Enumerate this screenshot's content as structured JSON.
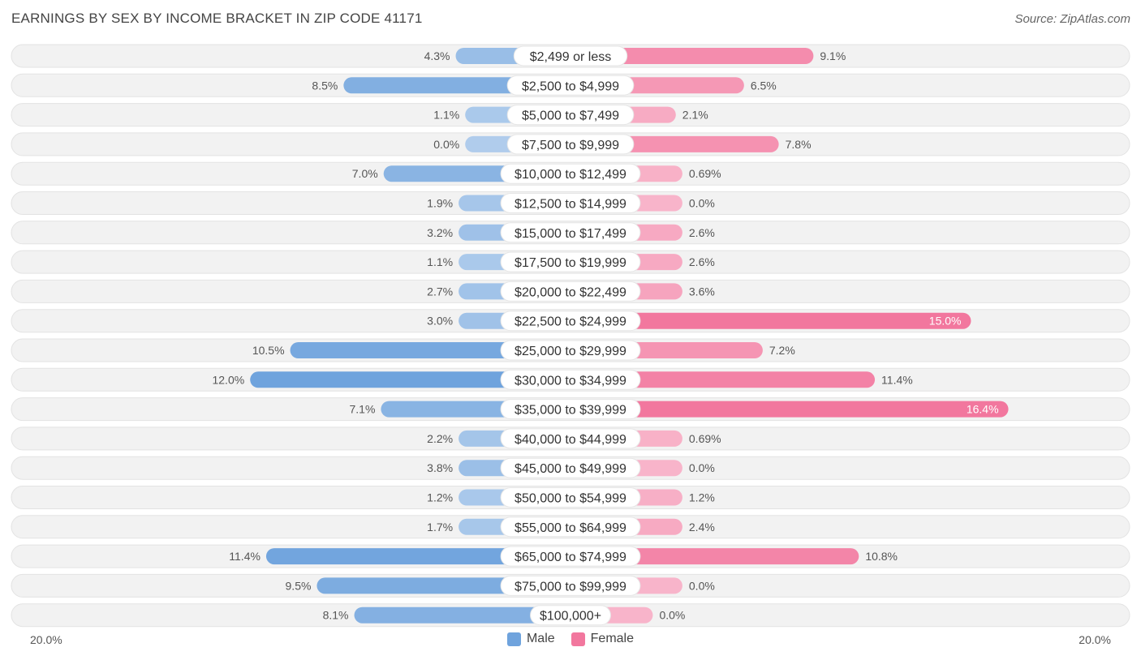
{
  "title": "EARNINGS BY SEX BY INCOME BRACKET IN ZIP CODE 41171",
  "source": "Source: ZipAtlas.com",
  "colors": {
    "male": "#6fa3dd",
    "female": "#f2779e",
    "track": "#f1f1f1"
  },
  "chart_data": {
    "type": "bar",
    "orientation": "horizontal-diverging",
    "title": "EARNINGS BY SEX BY INCOME BRACKET IN ZIP CODE 41171",
    "axis_min_label": "20.0%",
    "axis_max_label": "20.0%",
    "xlim": [
      -20,
      20
    ],
    "categories": [
      "$2,499 or less",
      "$2,500 to $4,999",
      "$5,000 to $7,499",
      "$7,500 to $9,999",
      "$10,000 to $12,499",
      "$12,500 to $14,999",
      "$15,000 to $17,499",
      "$17,500 to $19,999",
      "$20,000 to $22,499",
      "$22,500 to $24,999",
      "$25,000 to $29,999",
      "$30,000 to $34,999",
      "$35,000 to $39,999",
      "$40,000 to $44,999",
      "$45,000 to $49,999",
      "$50,000 to $54,999",
      "$55,000 to $64,999",
      "$65,000 to $74,999",
      "$75,000 to $99,999",
      "$100,000+"
    ],
    "series": [
      {
        "name": "Male",
        "values": [
          4.3,
          8.5,
          1.1,
          0.0,
          7.0,
          1.9,
          3.2,
          1.1,
          2.7,
          3.0,
          10.5,
          12.0,
          7.1,
          2.2,
          3.8,
          1.2,
          1.7,
          11.4,
          9.5,
          8.1
        ],
        "labels": [
          "4.3%",
          "8.5%",
          "1.1%",
          "0.0%",
          "7.0%",
          "1.9%",
          "3.2%",
          "1.1%",
          "2.7%",
          "3.0%",
          "10.5%",
          "12.0%",
          "7.1%",
          "2.2%",
          "3.8%",
          "1.2%",
          "1.7%",
          "11.4%",
          "9.5%",
          "8.1%"
        ]
      },
      {
        "name": "Female",
        "values": [
          9.1,
          6.5,
          2.1,
          7.8,
          0.69,
          0.0,
          2.6,
          2.6,
          3.6,
          15.0,
          7.2,
          11.4,
          16.4,
          0.69,
          0.0,
          1.2,
          2.4,
          10.8,
          0.0,
          0.0
        ],
        "labels": [
          "9.1%",
          "6.5%",
          "2.1%",
          "7.8%",
          "0.69%",
          "0.0%",
          "2.6%",
          "2.6%",
          "3.6%",
          "15.0%",
          "7.2%",
          "11.4%",
          "16.4%",
          "0.69%",
          "0.0%",
          "1.2%",
          "2.4%",
          "10.8%",
          "0.0%",
          "0.0%"
        ]
      }
    ],
    "legend": [
      "Male",
      "Female"
    ]
  }
}
